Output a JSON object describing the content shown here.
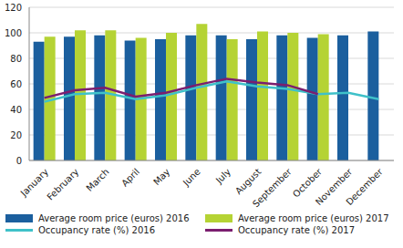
{
  "chart_data": {
    "type": "bar",
    "categories": [
      "January",
      "February",
      "March",
      "April",
      "May",
      "June",
      "July",
      "August",
      "September",
      "October",
      "November",
      "December"
    ],
    "series": [
      {
        "name": "Average room price (euros) 2016",
        "type": "bar",
        "color": "#1b5f9e",
        "values": [
          93,
          97,
          98,
          94,
          95,
          98,
          98,
          95,
          98,
          96,
          98,
          101
        ]
      },
      {
        "name": "Average room price (euros) 2017",
        "type": "bar",
        "color": "#b5d334",
        "values": [
          97,
          102,
          102,
          96,
          100,
          107,
          95,
          101,
          100,
          99,
          null,
          null
        ]
      },
      {
        "name": "Occupancy rate (%) 2016",
        "type": "line",
        "color": "#3fc1c9",
        "values": [
          46,
          52,
          53,
          48,
          51,
          57,
          62,
          58,
          56,
          52,
          53,
          48
        ]
      },
      {
        "name": "Occupancy rate (%) 2017",
        "type": "line",
        "color": "#7b1e6f",
        "values": [
          49,
          55,
          57,
          50,
          53,
          59,
          64,
          61,
          59,
          52,
          null,
          null
        ]
      }
    ],
    "ylim": [
      0,
      120
    ],
    "yticks": [
      0,
      20,
      40,
      60,
      80,
      100,
      120
    ],
    "grid": true,
    "legend": "bottom"
  }
}
